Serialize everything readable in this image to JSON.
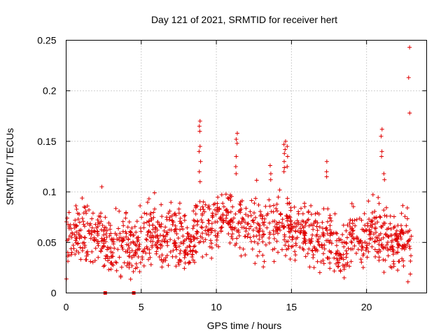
{
  "chart_data": {
    "type": "scatter",
    "title": "Day 121 of 2021, SRMTID for receiver hert",
    "xlabel": "GPS time / hours",
    "ylabel": "SRMTID / TECUs",
    "xlim": [
      0,
      24
    ],
    "ylim": [
      0,
      0.25
    ],
    "xticks": [
      0,
      5,
      10,
      15,
      20
    ],
    "xtick_labels": [
      "0",
      "5",
      "10",
      "15",
      "20"
    ],
    "yticks": [
      0,
      0.05,
      0.1,
      0.15,
      0.2,
      0.25
    ],
    "ytick_labels": [
      "0",
      "0.05",
      "0.1",
      "0.15",
      "0.2",
      "0.25"
    ],
    "grid": true,
    "marker": "+",
    "color": "#e00000",
    "series": [
      {
        "name": "SRMTID",
        "mean_level": 0.052,
        "x_range": [
          0,
          23.0
        ],
        "spikes": [
          {
            "x": 8.9,
            "y": [
              0.17,
              0.165,
              0.16,
              0.145,
              0.14,
              0.13,
              0.12,
              0.11
            ]
          },
          {
            "x": 11.35,
            "y": [
              0.158,
              0.152,
              0.148,
              0.135,
              0.125,
              0.118
            ]
          },
          {
            "x": 14.55,
            "y": [
              0.15,
              0.147,
              0.142,
              0.138,
              0.13,
              0.124,
              0.12
            ]
          },
          {
            "x": 14.75,
            "y": [
              0.145,
              0.135,
              0.125
            ]
          },
          {
            "x": 13.6,
            "y": [
              0.126,
              0.118,
              0.112
            ]
          },
          {
            "x": 17.3,
            "y": [
              0.13,
              0.12,
              0.115
            ]
          },
          {
            "x": 21.0,
            "y": [
              0.162,
              0.155,
              0.14,
              0.135
            ]
          },
          {
            "x": 21.2,
            "y": [
              0.118,
              0.112
            ]
          },
          {
            "x": 2.4,
            "y": [
              0.105
            ]
          },
          {
            "x": 22.85,
            "y": [
              0.243,
              0.213,
              0.178
            ]
          },
          {
            "x": 22.75,
            "y": [
              0.011
            ]
          }
        ],
        "zero_points": [
          {
            "x": 2.6,
            "y": 0
          },
          {
            "x": 4.5,
            "y": 0
          }
        ]
      }
    ]
  }
}
